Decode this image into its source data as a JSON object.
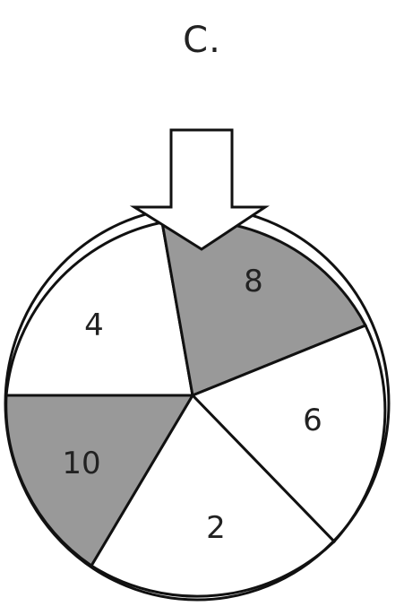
{
  "title": "C.",
  "spinner": {
    "fill_colors": {
      "white": "#ffffff",
      "gray": "#999999"
    },
    "stroke_color": "#111111",
    "sections": [
      {
        "label": "4",
        "shade": "white"
      },
      {
        "label": "8",
        "shade": "gray"
      },
      {
        "label": "6",
        "shade": "white"
      },
      {
        "label": "2",
        "shade": "white"
      },
      {
        "label": "10",
        "shade": "gray"
      }
    ],
    "pointer": "down-arrow-icon"
  }
}
